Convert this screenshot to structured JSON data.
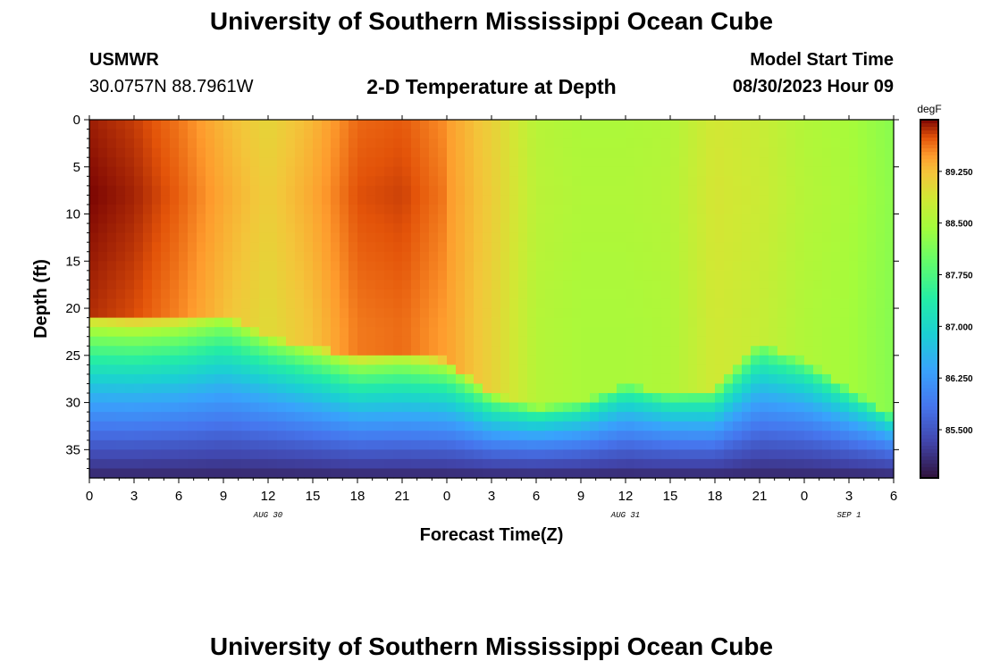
{
  "page": {
    "title": "University of Southern Mississippi Ocean Cube",
    "footer_title": "University of Southern Mississippi Ocean Cube"
  },
  "station": {
    "id": "USMWR",
    "coords": "30.0757N  88.7961W"
  },
  "model": {
    "label": "Model Start Time",
    "value": "08/30/2023 Hour 09"
  },
  "chart_data": {
    "type": "heatmap",
    "title": "2-D Temperature at Depth",
    "xlabel": "Forecast Time(Z)",
    "ylabel": "Depth (ft)",
    "x_ticks": [
      "0",
      "3",
      "6",
      "9",
      "12",
      "15",
      "18",
      "21",
      "0",
      "3",
      "6",
      "9",
      "12",
      "15",
      "18",
      "21",
      "0",
      "3",
      "6"
    ],
    "x_range_hours": [
      0,
      54
    ],
    "date_labels": [
      {
        "label": "AUG 30",
        "hour": 12
      },
      {
        "label": "AUG 31",
        "hour": 36
      },
      {
        "label": "SEP 1",
        "hour": 51
      }
    ],
    "y_ticks": [
      0,
      5,
      10,
      15,
      20,
      25,
      30,
      35
    ],
    "y_range_ft": [
      0,
      38
    ],
    "colorbar": {
      "unit": "degF",
      "ticks": [
        "89.250",
        "88.500",
        "87.750",
        "87.000",
        "86.250",
        "85.500"
      ],
      "range": [
        84.8,
        90.0
      ]
    },
    "z_units": "degF",
    "warm_layer_bottom_ft": {
      "hours": [
        0,
        3,
        6,
        9,
        12,
        15,
        18,
        21,
        24,
        27,
        30,
        33,
        36,
        39,
        42,
        45,
        48,
        51,
        54
      ],
      "depth": [
        23.5,
        24.0,
        24.0,
        23.5,
        26.0,
        27.0,
        28.0,
        27.5,
        28.5,
        32.0,
        33.5,
        33.0,
        31.0,
        32.0,
        31.5,
        26.5,
        28.5,
        31.5,
        34.5
      ]
    },
    "upper_layer_temps_degF": {
      "hours": [
        0,
        3,
        6,
        9,
        12,
        15,
        18,
        21,
        24,
        27,
        30,
        33,
        36,
        39,
        42,
        45,
        48,
        51,
        54
      ],
      "temp": [
        89.85,
        89.75,
        89.55,
        89.25,
        89.0,
        89.25,
        89.6,
        89.65,
        89.45,
        89.1,
        88.6,
        88.5,
        88.5,
        88.55,
        88.85,
        88.75,
        88.55,
        88.45,
        88.2
      ]
    },
    "bottom_temp_degF": 85.0
  }
}
